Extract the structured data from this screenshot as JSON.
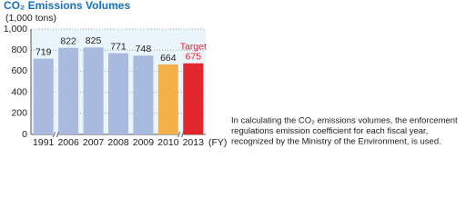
{
  "chart_data": {
    "type": "bar",
    "title": "CO₂ Emissions Volumes",
    "subtitle": "(1,000 tons)",
    "xlabel": "(FY)",
    "categories": [
      "1991",
      "2006",
      "2007",
      "2008",
      "2009",
      "2010",
      "2013"
    ],
    "values": [
      719,
      822,
      825,
      771,
      748,
      664,
      675
    ],
    "colors": [
      "#a9badf",
      "#a9badf",
      "#a9badf",
      "#a9badf",
      "#a9badf",
      "#f5b04a",
      "#e3262b"
    ],
    "value_label_colors": [
      "#222222",
      "#222222",
      "#222222",
      "#222222",
      "#222222",
      "#222222",
      "#e3262b"
    ],
    "annotation": "Target",
    "ylim": [
      0,
      1000
    ],
    "yticks": [
      0,
      200,
      400,
      600,
      800,
      {
        "value": 1000,
        "label": "1,000"
      }
    ],
    "grid": true,
    "note": [
      "In calculating the CO₂ emissions volumes, the enforcement",
      "regulations emission coefficient for each fiscal year,",
      "recognized by the Ministry of the Environment, is used."
    ]
  }
}
